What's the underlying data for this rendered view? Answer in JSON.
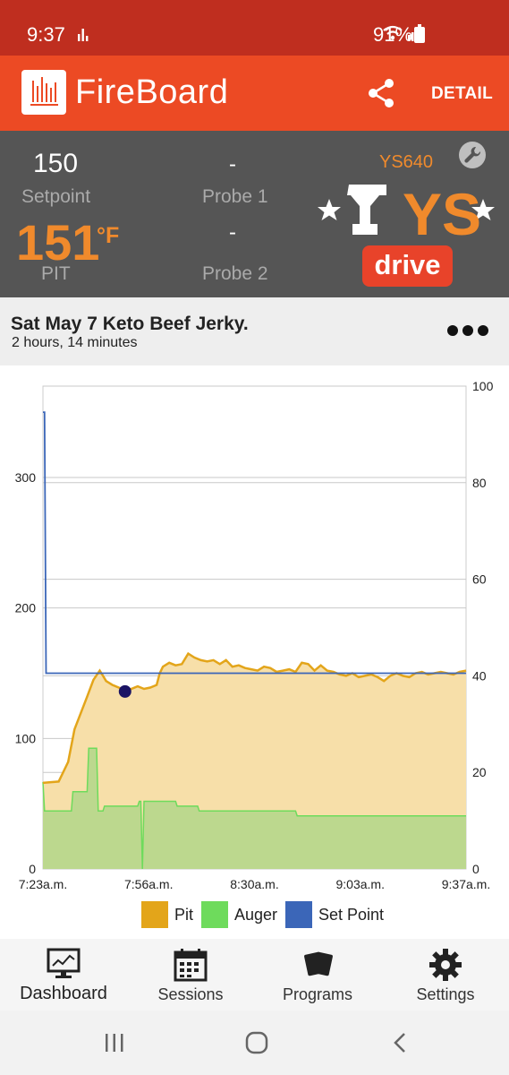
{
  "status_bar": {
    "time": "9:37",
    "battery": "91%"
  },
  "app_bar": {
    "title": "FireBoard",
    "detail_label": "DETAIL"
  },
  "readout": {
    "setpoint_value": "150",
    "setpoint_label": "Setpoint",
    "pit_value": "151",
    "pit_unit": "°F",
    "pit_label": "PIT",
    "probe1_value": "-",
    "probe1_label": "Probe 1",
    "probe2_value": "-",
    "probe2_label": "Probe 2",
    "controller_model": "YS640",
    "brand_badge": "drive",
    "brand_logo_text": "YS"
  },
  "session": {
    "title": "Sat May 7 Keto Beef Jerky.",
    "duration": "2 hours, 14 minutes"
  },
  "colors": {
    "brand": "#ec4a24",
    "status_bar": "#bf2e1f",
    "panel": "#555555",
    "pit_line": "#e3a51a",
    "pit_fill": "#f7dfa9",
    "auger_line": "#6edb5c",
    "auger_fill": "#bcd88e",
    "setpoint_line": "#3b66b8"
  },
  "chart_data": {
    "type": "line",
    "x_ticks": [
      "7:23a.m.",
      "7:56a.m.",
      "8:30a.m.",
      "9:03a.m.",
      "9:37a.m."
    ],
    "x_range_minutes": [
      0,
      134
    ],
    "y_left_ticks": [
      "0",
      "100",
      "200",
      "300"
    ],
    "y_left_range": [
      0,
      370
    ],
    "y_right_ticks": [
      "0",
      "20",
      "40",
      "60",
      "80",
      "100"
    ],
    "y_right_range": [
      0,
      100
    ],
    "grid": true,
    "legend_position": "bottom",
    "series": [
      {
        "name": "Pit",
        "axis": "left",
        "fill": true,
        "x": [
          0,
          5,
          8,
          10,
          14,
          16,
          18,
          19,
          20,
          22,
          24,
          26,
          28,
          30,
          32,
          34,
          36,
          37,
          38,
          40,
          42,
          44,
          46,
          48,
          50,
          52,
          54,
          56,
          58,
          60,
          62,
          64,
          66,
          68,
          70,
          72,
          74,
          76,
          78,
          80,
          82,
          84,
          86,
          88,
          90,
          92,
          94,
          96,
          98,
          100,
          102,
          104,
          106,
          108,
          110,
          112,
          114,
          116,
          118,
          120,
          122,
          124,
          126,
          128,
          130,
          132,
          134
        ],
        "y": [
          66,
          67,
          82,
          107,
          132,
          145,
          152,
          148,
          144,
          141,
          139,
          137,
          138,
          140,
          138,
          139,
          141,
          150,
          155,
          158,
          156,
          157,
          165,
          162,
          160,
          159,
          160,
          157,
          160,
          155,
          156,
          154,
          153,
          152,
          155,
          154,
          151,
          152,
          153,
          151,
          158,
          157,
          152,
          156,
          152,
          151,
          149,
          148,
          150,
          147,
          148,
          149,
          147,
          144,
          148,
          150,
          148,
          147,
          150,
          151,
          149,
          150,
          151,
          150,
          149,
          151,
          152
        ]
      },
      {
        "name": "Auger",
        "axis": "right",
        "fill": true,
        "x": [
          0,
          0.5,
          1,
          9,
          9.5,
          14,
          14.5,
          15,
          17,
          17.5,
          19,
          19.5,
          22,
          22.5,
          24,
          30,
          30.5,
          31,
          31.5,
          32,
          32.5,
          42,
          42.5,
          49,
          49.5,
          80,
          80.5,
          134
        ],
        "y": [
          18,
          12,
          12,
          12,
          16,
          16,
          25,
          25,
          25,
          12,
          12,
          13,
          13,
          13,
          13,
          13,
          14,
          14,
          0,
          14,
          14,
          14,
          13,
          13,
          12,
          12,
          11,
          11
        ]
      },
      {
        "name": "Set Point",
        "axis": "left",
        "fill": false,
        "x": [
          0,
          0.5,
          1,
          134
        ],
        "y": [
          350,
          350,
          150,
          150
        ]
      }
    ]
  },
  "bottom_nav": [
    {
      "label": "Dashboard",
      "icon": "dashboard-monitor-icon",
      "active": true
    },
    {
      "label": "Sessions",
      "icon": "calendar-icon",
      "active": false
    },
    {
      "label": "Programs",
      "icon": "cards-icon",
      "active": false
    },
    {
      "label": "Settings",
      "icon": "gear-icon",
      "active": false
    }
  ]
}
